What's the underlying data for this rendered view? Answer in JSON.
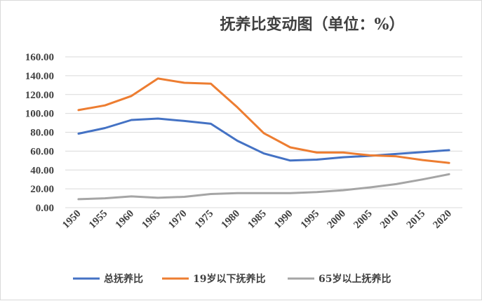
{
  "chart_data": {
    "type": "line",
    "title": "抚养比变动图（单位：%）",
    "xlabel": "",
    "ylabel": "",
    "categories": [
      "1950",
      "1955",
      "1960",
      "1965",
      "1970",
      "1975",
      "1980",
      "1985",
      "1990",
      "1995",
      "2000",
      "2005",
      "2010",
      "2015",
      "2020"
    ],
    "y_ticks": [
      "0.00",
      "20.00",
      "40.00",
      "60.00",
      "80.00",
      "100.00",
      "120.00",
      "140.00",
      "160.00"
    ],
    "ylim": [
      0,
      160
    ],
    "grid": true,
    "legend_position": "bottom",
    "series": [
      {
        "name": "总抚养比",
        "color": "#4472c4",
        "values": [
          78.5,
          84.5,
          93.0,
          94.5,
          92.0,
          89.0,
          71.0,
          57.5,
          50.0,
          51.0,
          53.5,
          55.0,
          57.0,
          59.0,
          61.0
        ]
      },
      {
        "name": "19岁以下抚养比",
        "color": "#ed7d31",
        "values": [
          103.5,
          108.5,
          118.5,
          137.0,
          132.5,
          131.5,
          106.5,
          79.0,
          64.0,
          58.5,
          58.5,
          55.5,
          54.5,
          50.5,
          47.5
        ]
      },
      {
        "name": "65岁以上抚养比",
        "color": "#a5a5a5",
        "values": [
          9.0,
          10.0,
          12.0,
          10.5,
          11.5,
          14.5,
          15.5,
          15.5,
          15.5,
          16.5,
          18.5,
          21.5,
          25.0,
          30.0,
          35.5
        ]
      }
    ]
  },
  "colors": {
    "grid": "#d9d9d9",
    "text": "#404040"
  }
}
